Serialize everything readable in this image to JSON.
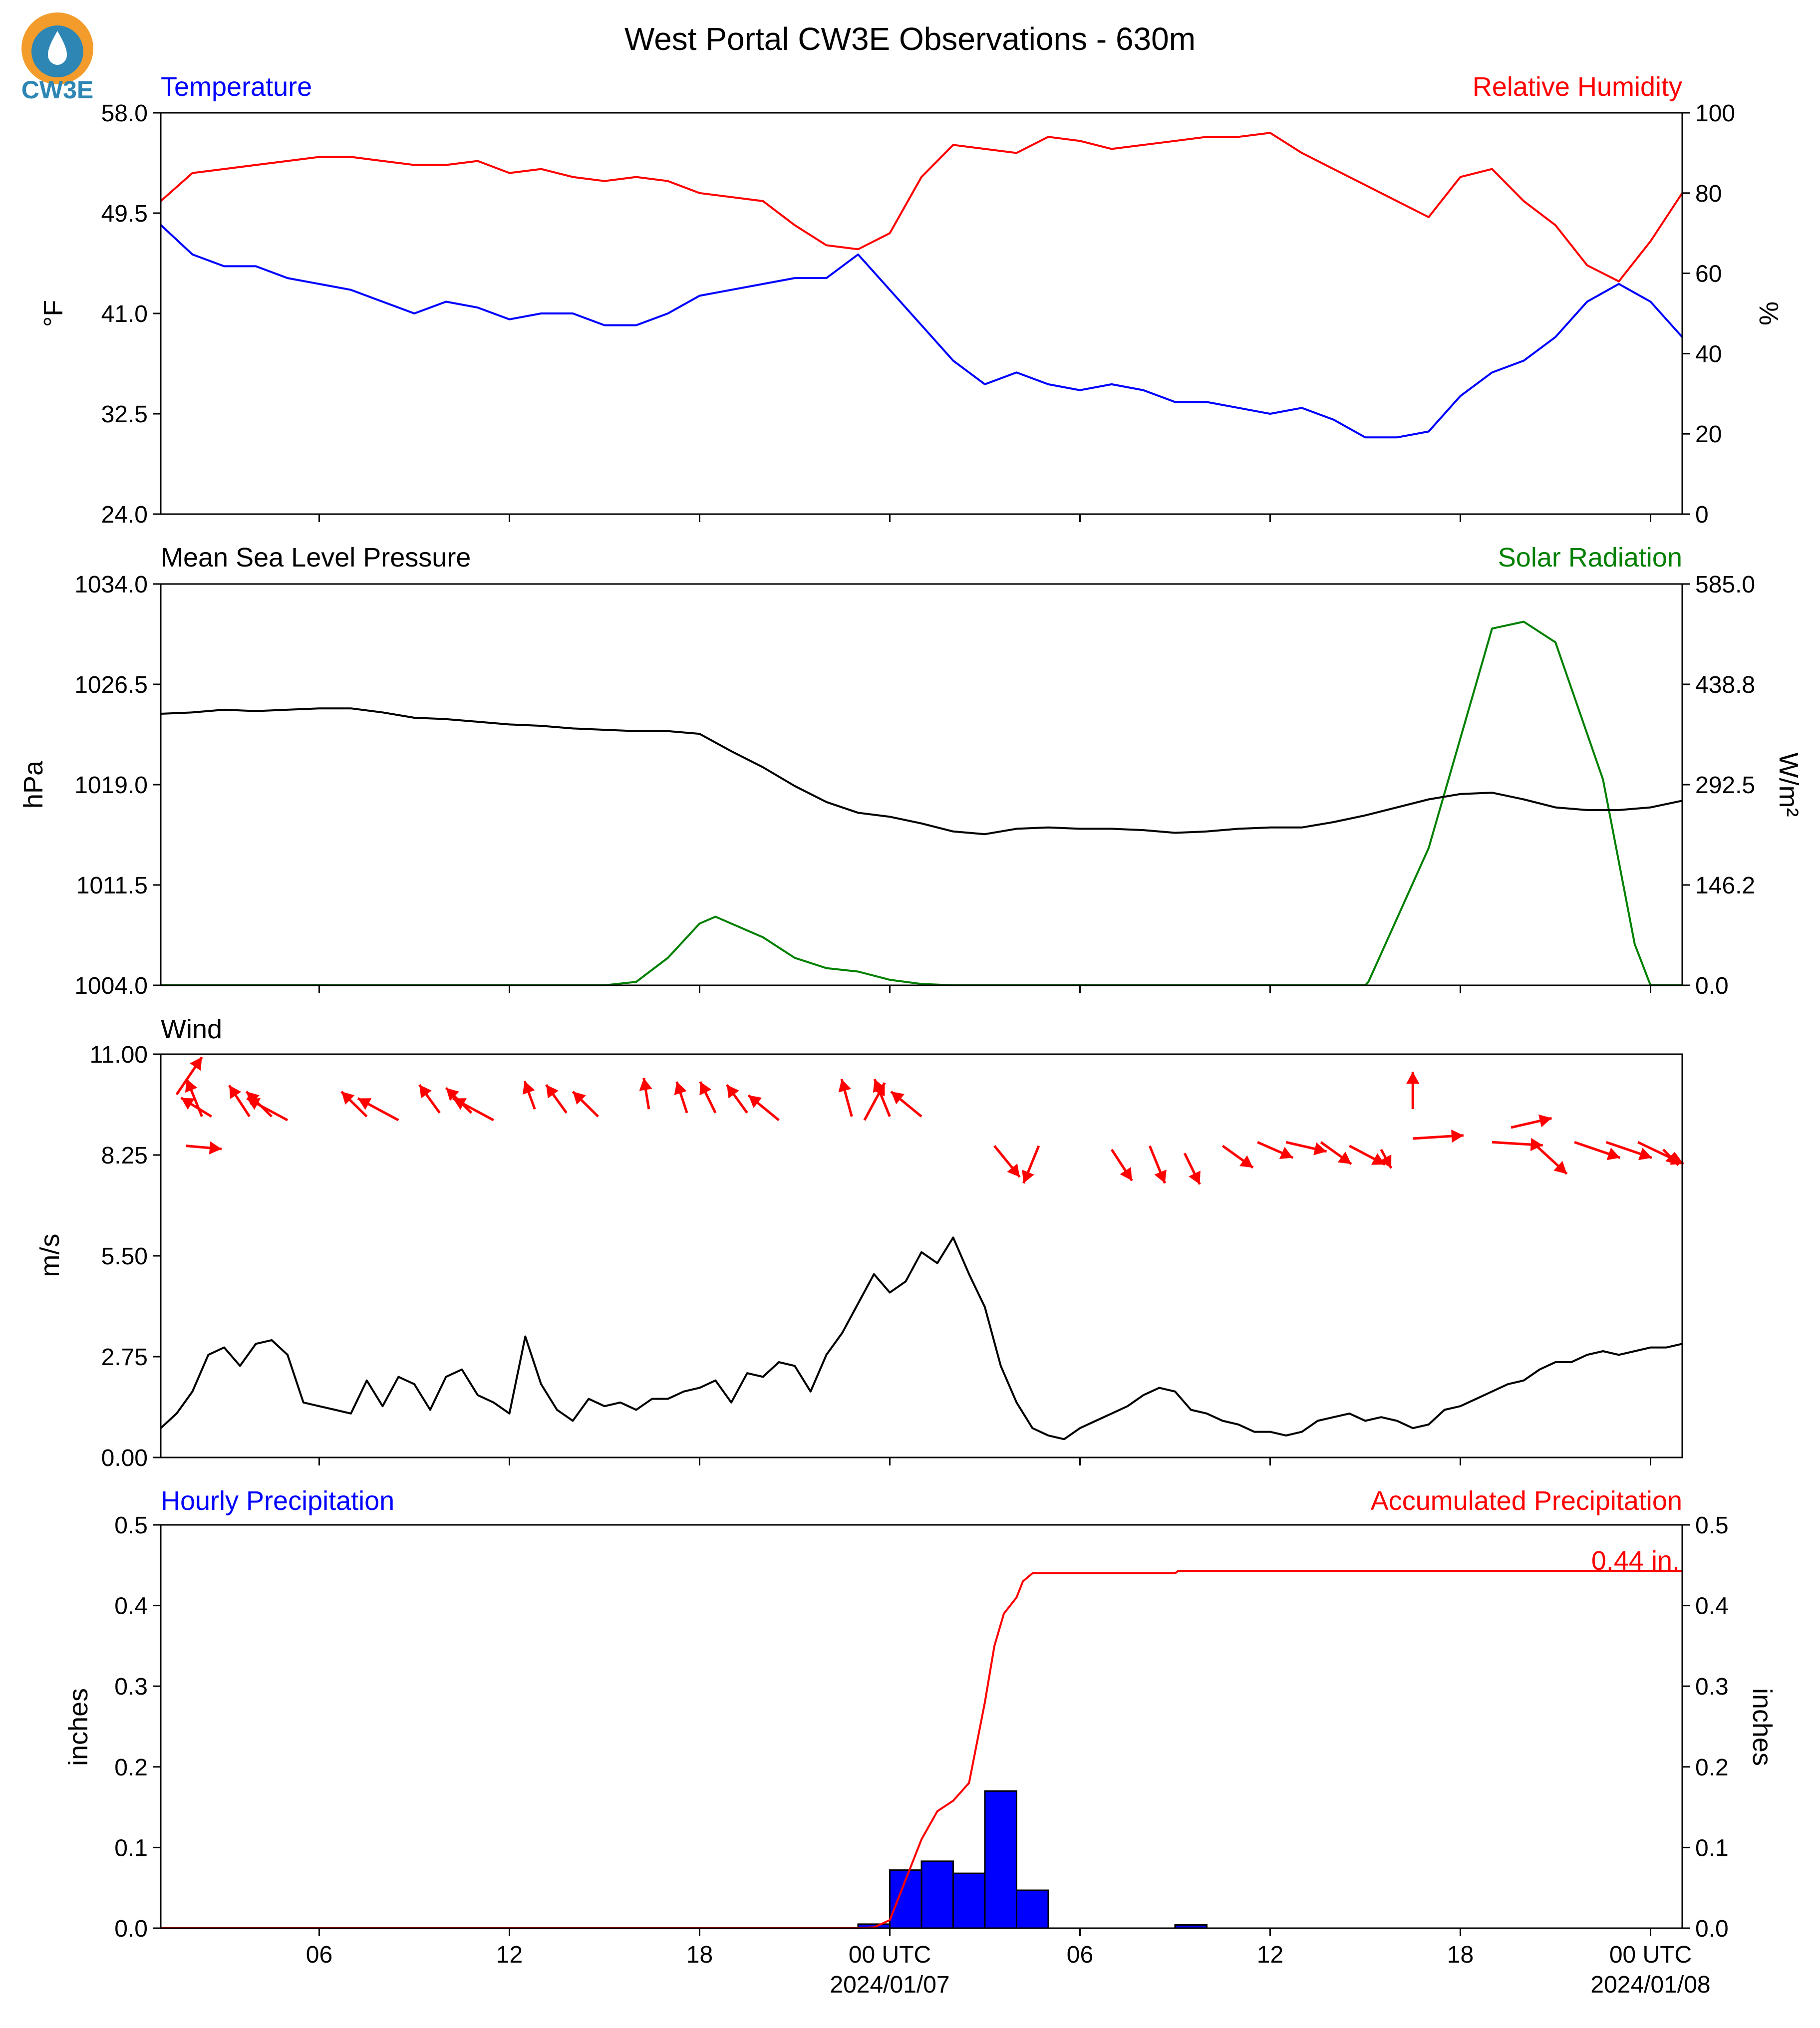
{
  "figure": {
    "title": "West Portal CW3E Observations - 630m",
    "logo_text": "CW3E",
    "x_start_hours": 0,
    "x_end_hours": 48,
    "x_ticks": [
      {
        "h": 5,
        "label": "06"
      },
      {
        "h": 11,
        "label": "12"
      },
      {
        "h": 17,
        "label": "18"
      },
      {
        "h": 23,
        "label": "00 UTC",
        "date": "2024/01/07"
      },
      {
        "h": 29,
        "label": "06"
      },
      {
        "h": 35,
        "label": "12"
      },
      {
        "h": 41,
        "label": "18"
      },
      {
        "h": 47,
        "label": "00 UTC",
        "date": "2024/01/08"
      }
    ]
  },
  "colors": {
    "temperature": "#0000ff",
    "humidity": "#ff0000",
    "pressure": "#000000",
    "solar": "#008000",
    "wind_speed": "#000000",
    "wind_arrows": "#ff0000",
    "precip_bar": "#0000ff",
    "precip_accum": "#ff0000"
  },
  "chart_data": [
    {
      "type": "line",
      "panel": "temperature-humidity",
      "left_title": "Temperature",
      "right_title": "Relative Humidity",
      "ylabel_left": "°F",
      "ylabel_right": "%",
      "ylim_left": [
        24.0,
        58.0
      ],
      "ylim_right": [
        0,
        100
      ],
      "yticks_left": [
        "24.0",
        "32.5",
        "41.0",
        "49.5",
        "58.0"
      ],
      "yticks_right": [
        "0",
        "20",
        "40",
        "60",
        "80",
        "100"
      ],
      "series": [
        {
          "axis": "left",
          "x": [
            0,
            1,
            2,
            3,
            4,
            5,
            6,
            7,
            8,
            9,
            10,
            11,
            12,
            13,
            14,
            15,
            16,
            17,
            18,
            19,
            20,
            21,
            22,
            23,
            24,
            25,
            26,
            27,
            28,
            29,
            30,
            31,
            32,
            33,
            34,
            35,
            36,
            37,
            38,
            39,
            40,
            41,
            42,
            43,
            44,
            45,
            46,
            47,
            48
          ],
          "y": [
            48.5,
            46,
            45,
            45,
            44,
            43.5,
            43,
            42,
            41,
            42,
            41.5,
            40.5,
            41,
            41,
            40,
            40,
            41,
            42.5,
            43,
            43.5,
            44,
            44,
            46,
            43,
            40,
            37,
            35,
            36,
            35,
            34.5,
            35,
            34.5,
            33.5,
            33.5,
            33,
            32.5,
            33,
            32,
            30.5,
            30.5,
            31,
            34,
            36,
            37,
            39,
            42,
            43.5,
            42,
            39
          ]
        },
        {
          "axis": "right",
          "x": [
            0,
            1,
            2,
            3,
            4,
            5,
            6,
            7,
            8,
            9,
            10,
            11,
            12,
            13,
            14,
            15,
            16,
            17,
            18,
            19,
            20,
            21,
            22,
            23,
            24,
            25,
            26,
            27,
            28,
            29,
            30,
            31,
            32,
            33,
            34,
            35,
            36,
            37,
            38,
            39,
            40,
            41,
            42,
            43,
            44,
            45,
            46,
            47,
            48
          ],
          "y": [
            78,
            85,
            86,
            87,
            88,
            89,
            89,
            88,
            87,
            87,
            88,
            85,
            86,
            84,
            83,
            84,
            83,
            80,
            79,
            78,
            72,
            67,
            66,
            70,
            84,
            92,
            91,
            90,
            94,
            93,
            91,
            92,
            93,
            94,
            94,
            95,
            90,
            86,
            82,
            78,
            74,
            84,
            86,
            78,
            72,
            62,
            58,
            68,
            80
          ]
        }
      ]
    },
    {
      "type": "line",
      "panel": "pressure-solar",
      "left_title": "Mean Sea Level Pressure",
      "right_title": "Solar Radiation",
      "ylabel_left": "hPa",
      "ylabel_right": "W/m²",
      "ylim_left": [
        1004.0,
        1034.0
      ],
      "ylim_right": [
        0.0,
        585.0
      ],
      "yticks_left": [
        "1004.0",
        "1011.5",
        "1019.0",
        "1026.5",
        "1034.0"
      ],
      "yticks_right": [
        "0.0",
        "146.2",
        "292.5",
        "438.8",
        "585.0"
      ],
      "series": [
        {
          "axis": "left",
          "x": [
            0,
            1,
            2,
            3,
            4,
            5,
            6,
            7,
            8,
            9,
            10,
            11,
            12,
            13,
            14,
            15,
            16,
            17,
            18,
            19,
            20,
            21,
            22,
            23,
            24,
            25,
            26,
            27,
            28,
            29,
            30,
            31,
            32,
            33,
            34,
            35,
            36,
            37,
            38,
            39,
            40,
            41,
            42,
            43,
            44,
            45,
            46,
            47,
            48
          ],
          "y": [
            1024.3,
            1024.4,
            1024.6,
            1024.5,
            1024.6,
            1024.7,
            1024.7,
            1024.4,
            1024.0,
            1023.9,
            1023.7,
            1023.5,
            1023.4,
            1023.2,
            1023.1,
            1023.0,
            1023.0,
            1022.8,
            1021.5,
            1020.3,
            1018.9,
            1017.7,
            1016.9,
            1016.6,
            1016.1,
            1015.5,
            1015.3,
            1015.7,
            1015.8,
            1015.7,
            1015.7,
            1015.6,
            1015.4,
            1015.5,
            1015.7,
            1015.8,
            1015.8,
            1016.2,
            1016.7,
            1017.3,
            1017.9,
            1018.3,
            1018.4,
            1017.9,
            1017.3,
            1017.1,
            1017.1,
            1017.3,
            1017.8
          ]
        },
        {
          "axis": "right",
          "x": [
            0,
            14,
            15,
            16,
            17,
            17.5,
            18,
            19,
            20,
            21,
            22,
            23,
            24,
            25,
            26,
            37,
            38,
            38.1,
            40,
            41.5,
            42,
            43,
            44,
            45.5,
            46.5,
            47,
            47.3,
            48
          ],
          "y": [
            0,
            0,
            5,
            40,
            90,
            100,
            90,
            70,
            40,
            25,
            20,
            8,
            2,
            0,
            0,
            0,
            0,
            5,
            200,
            440,
            520,
            530,
            500,
            300,
            60,
            0,
            0,
            0
          ]
        }
      ]
    },
    {
      "type": "line",
      "panel": "wind",
      "left_title": "Wind",
      "ylabel_left": "m/s",
      "ylim": [
        0.0,
        11.0
      ],
      "yticks": [
        "0.00",
        "2.75",
        "5.50",
        "8.25",
        "11.00"
      ],
      "series": [
        {
          "name": "speed",
          "x": [
            0,
            0.5,
            1,
            1.5,
            2,
            2.5,
            3,
            3.5,
            4,
            4.5,
            5,
            5.5,
            6,
            6.5,
            7,
            7.5,
            8,
            8.5,
            9,
            9.5,
            10,
            10.5,
            11,
            11.5,
            12,
            12.5,
            13,
            13.5,
            14,
            14.5,
            15,
            15.5,
            16,
            16.5,
            17,
            17.5,
            18,
            18.5,
            19,
            19.5,
            20,
            20.5,
            21,
            21.5,
            22,
            22.5,
            23,
            23.5,
            24,
            24.5,
            25,
            25.5,
            26,
            26.5,
            27,
            27.5,
            28,
            28.5,
            29,
            29.5,
            30,
            30.5,
            31,
            31.5,
            32,
            32.5,
            33,
            33.5,
            34,
            34.5,
            35,
            35.5,
            36,
            36.5,
            37,
            37.5,
            38,
            38.5,
            39,
            39.5,
            40,
            40.5,
            41,
            41.5,
            42,
            42.5,
            43,
            43.5,
            44,
            44.5,
            45,
            45.5,
            46,
            46.5,
            47,
            47.5,
            48
          ],
          "y": [
            0.8,
            1.2,
            1.8,
            2.8,
            3.0,
            2.5,
            3.1,
            3.2,
            2.8,
            1.5,
            1.4,
            1.3,
            1.2,
            2.1,
            1.4,
            2.2,
            2.0,
            1.3,
            2.2,
            2.4,
            1.7,
            1.5,
            1.2,
            3.3,
            2.0,
            1.3,
            1.0,
            1.6,
            1.4,
            1.5,
            1.3,
            1.6,
            1.6,
            1.8,
            1.9,
            2.1,
            1.5,
            2.3,
            2.2,
            2.6,
            2.5,
            1.8,
            2.8,
            3.4,
            4.2,
            5.0,
            4.5,
            4.8,
            5.6,
            5.3,
            6.0,
            5.0,
            4.1,
            2.5,
            1.5,
            0.8,
            0.6,
            0.5,
            0.8,
            1.0,
            1.2,
            1.4,
            1.7,
            1.9,
            1.8,
            1.3,
            1.2,
            1.0,
            0.9,
            0.7,
            0.7,
            0.6,
            0.7,
            1.0,
            1.1,
            1.2,
            1.0,
            1.1,
            1.0,
            0.8,
            0.9,
            1.3,
            1.4,
            1.6,
            1.8,
            2.0,
            2.1,
            2.4,
            2.6,
            2.6,
            2.8,
            2.9,
            2.8,
            2.9,
            3.0,
            3.0,
            3.1
          ]
        }
      ],
      "wind_arrows": [
        {
          "x": 0.5,
          "y": 9.9,
          "u": 0.5,
          "v": 1.2
        },
        {
          "x": 0.8,
          "y": 8.5,
          "u": 0.7,
          "v": -0.1
        },
        {
          "x": 1.6,
          "y": 9.3,
          "u": -0.6,
          "v": 0.6
        },
        {
          "x": 1.3,
          "y": 9.3,
          "u": -0.3,
          "v": 1.2
        },
        {
          "x": 2.8,
          "y": 9.3,
          "u": -0.4,
          "v": 1.0
        },
        {
          "x": 3.5,
          "y": 9.3,
          "u": -0.5,
          "v": 0.8
        },
        {
          "x": 4.0,
          "y": 9.2,
          "u": -0.8,
          "v": 0.7
        },
        {
          "x": 6.5,
          "y": 9.3,
          "u": -0.5,
          "v": 0.8
        },
        {
          "x": 7.5,
          "y": 9.2,
          "u": -0.8,
          "v": 0.7
        },
        {
          "x": 8.8,
          "y": 9.4,
          "u": -0.4,
          "v": 0.9
        },
        {
          "x": 9.8,
          "y": 9.4,
          "u": -0.5,
          "v": 0.8
        },
        {
          "x": 10.5,
          "y": 9.2,
          "u": -0.8,
          "v": 0.7
        },
        {
          "x": 11.8,
          "y": 9.5,
          "u": -0.2,
          "v": 0.9
        },
        {
          "x": 12.8,
          "y": 9.4,
          "u": -0.4,
          "v": 0.9
        },
        {
          "x": 13.8,
          "y": 9.3,
          "u": -0.5,
          "v": 0.8
        },
        {
          "x": 15.4,
          "y": 9.5,
          "u": -0.1,
          "v": 1.0
        },
        {
          "x": 16.6,
          "y": 9.4,
          "u": -0.2,
          "v": 1.0
        },
        {
          "x": 17.5,
          "y": 9.4,
          "u": -0.3,
          "v": 1.0
        },
        {
          "x": 18.5,
          "y": 9.4,
          "u": -0.4,
          "v": 0.9
        },
        {
          "x": 19.5,
          "y": 9.2,
          "u": -0.6,
          "v": 0.8
        },
        {
          "x": 21.8,
          "y": 9.3,
          "u": -0.2,
          "v": 1.2
        },
        {
          "x": 22.2,
          "y": 9.2,
          "u": 0.4,
          "v": 1.2
        },
        {
          "x": 23.0,
          "y": 9.3,
          "u": -0.3,
          "v": 1.2
        },
        {
          "x": 24.0,
          "y": 9.3,
          "u": -0.6,
          "v": 0.8
        },
        {
          "x": 26.3,
          "y": 8.5,
          "u": 0.5,
          "v": -1.0
        },
        {
          "x": 27.7,
          "y": 8.5,
          "u": -0.3,
          "v": -1.2
        },
        {
          "x": 30.0,
          "y": 8.4,
          "u": 0.4,
          "v": -1.0
        },
        {
          "x": 31.2,
          "y": 8.5,
          "u": 0.3,
          "v": -1.2
        },
        {
          "x": 32.3,
          "y": 8.3,
          "u": 0.3,
          "v": -1.0
        },
        {
          "x": 33.5,
          "y": 8.5,
          "u": 0.6,
          "v": -0.7
        },
        {
          "x": 34.6,
          "y": 8.6,
          "u": 0.7,
          "v": -0.5
        },
        {
          "x": 35.5,
          "y": 8.6,
          "u": 0.8,
          "v": -0.3
        },
        {
          "x": 36.6,
          "y": 8.6,
          "u": 0.6,
          "v": -0.7
        },
        {
          "x": 37.5,
          "y": 8.5,
          "u": 0.7,
          "v": -0.6
        },
        {
          "x": 38.5,
          "y": 8.4,
          "u": 0.2,
          "v": -0.6
        },
        {
          "x": 39.5,
          "y": 9.5,
          "u": 0.0,
          "v": 1.2
        },
        {
          "x": 39.5,
          "y": 8.7,
          "u": 1.0,
          "v": 0.1
        },
        {
          "x": 42.0,
          "y": 8.6,
          "u": 1.0,
          "v": -0.1
        },
        {
          "x": 42.6,
          "y": 9.0,
          "u": 0.8,
          "v": 0.3
        },
        {
          "x": 43.4,
          "y": 8.5,
          "u": 0.6,
          "v": -0.9
        },
        {
          "x": 44.6,
          "y": 8.6,
          "u": 0.9,
          "v": -0.5
        },
        {
          "x": 45.6,
          "y": 8.6,
          "u": 0.9,
          "v": -0.5
        },
        {
          "x": 46.6,
          "y": 8.6,
          "u": 0.9,
          "v": -0.7
        },
        {
          "x": 47.4,
          "y": 8.4,
          "u": 0.3,
          "v": -0.5
        }
      ]
    },
    {
      "type": "bar",
      "panel": "precipitation",
      "left_title": "Hourly Precipitation",
      "right_title": "Accumulated Precipitation",
      "ylabel_left": "inches",
      "ylabel_right": "inches",
      "ylim": [
        0.0,
        0.5
      ],
      "yticks": [
        "0.0",
        "0.1",
        "0.2",
        "0.3",
        "0.4",
        "0.5"
      ],
      "bars": {
        "x_start": [
          22,
          23,
          24,
          25,
          26,
          27,
          32
        ],
        "values": [
          0.005,
          0.072,
          0.083,
          0.068,
          0.17,
          0.047,
          0.004
        ]
      },
      "accumulated": {
        "x": [
          0,
          22,
          22.5,
          23.0,
          23.5,
          24,
          24.5,
          25,
          25.5,
          26.0,
          26.3,
          26.6,
          27,
          27.2,
          27.5,
          28,
          30,
          32,
          32.1,
          34,
          40,
          46,
          48
        ],
        "y": [
          0,
          0,
          0.001,
          0.01,
          0.06,
          0.11,
          0.145,
          0.158,
          0.18,
          0.28,
          0.35,
          0.39,
          0.41,
          0.43,
          0.44,
          0.44,
          0.44,
          0.44,
          0.443,
          0.443,
          0.443,
          0.443,
          0.443
        ]
      },
      "total_label": "0.44 in."
    }
  ]
}
